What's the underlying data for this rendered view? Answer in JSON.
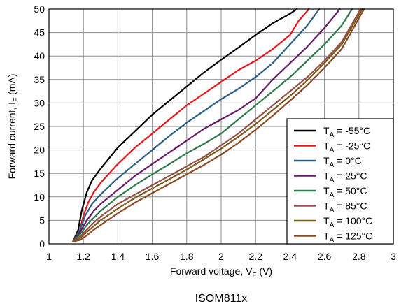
{
  "chart_data": {
    "type": "line",
    "xlabel": "Forward voltage, V",
    "xlabel_sub": "F",
    "xlabel_unit": " (V)",
    "ylabel": "Forward current, I",
    "ylabel_sub": "F",
    "ylabel_unit": " (mA)",
    "caption": "ISOM811x",
    "xlim": [
      1,
      3
    ],
    "ylim": [
      0,
      50
    ],
    "x_ticks": [
      "1",
      "1.2",
      "1.4",
      "1.6",
      "1.8",
      "2",
      "2.2",
      "2.4",
      "2.6",
      "2.8",
      "3"
    ],
    "y_ticks": [
      "0",
      "5",
      "10",
      "15",
      "20",
      "25",
      "30",
      "35",
      "40",
      "45",
      "50"
    ],
    "grid": true,
    "legend_position": "bottom-right",
    "legend_prefix": "T",
    "legend_prefix_sub": "A",
    "series": [
      {
        "name": " = -55°C",
        "color": "#000000",
        "x": [
          1.14,
          1.17,
          1.19,
          1.22,
          1.25,
          1.3,
          1.4,
          1.5,
          1.6,
          1.7,
          1.8,
          1.9,
          2.0,
          2.1,
          2.2,
          2.3,
          2.4,
          2.44
        ],
        "y": [
          0.5,
          3.0,
          7.0,
          11.0,
          13.5,
          16.0,
          20.5,
          24.0,
          27.5,
          30.5,
          33.5,
          36.5,
          39.2,
          41.8,
          44.5,
          47.0,
          49.0,
          50
        ]
      },
      {
        "name": " = -25°C",
        "color": "#e8151b",
        "x": [
          1.14,
          1.18,
          1.2,
          1.23,
          1.26,
          1.3,
          1.4,
          1.5,
          1.6,
          1.7,
          1.8,
          1.9,
          2.0,
          2.1,
          2.2,
          2.3,
          2.4,
          2.45,
          2.51
        ],
        "y": [
          0.5,
          3.0,
          6.0,
          9.0,
          11.0,
          13.0,
          17.0,
          20.5,
          23.5,
          26.5,
          29.5,
          32.0,
          34.5,
          37.0,
          39.0,
          41.5,
          44.5,
          47.5,
          50
        ]
      },
      {
        "name": " = 0°C",
        "color": "#2b5f83",
        "x": [
          1.14,
          1.18,
          1.21,
          1.25,
          1.3,
          1.4,
          1.5,
          1.6,
          1.7,
          1.8,
          1.9,
          2.0,
          2.1,
          2.2,
          2.3,
          2.4,
          2.5,
          2.57
        ],
        "y": [
          0.5,
          3.0,
          6.0,
          8.5,
          10.5,
          14.0,
          17.0,
          20.0,
          23.0,
          25.8,
          28.3,
          30.8,
          33.0,
          35.5,
          38.5,
          42.5,
          46.5,
          50
        ]
      },
      {
        "name": " = 25°C",
        "color": "#6a1a6a",
        "x": [
          1.14,
          1.18,
          1.22,
          1.26,
          1.3,
          1.4,
          1.5,
          1.6,
          1.7,
          1.8,
          1.9,
          2.0,
          2.1,
          2.2,
          2.3,
          2.4,
          2.5,
          2.6,
          2.69
        ],
        "y": [
          0.5,
          2.5,
          5.0,
          7.0,
          8.5,
          11.5,
          14.5,
          17.0,
          19.5,
          22.0,
          24.5,
          26.5,
          28.5,
          31.0,
          35.0,
          38.5,
          42.0,
          46.0,
          50
        ]
      },
      {
        "name": " = 50°C",
        "color": "#2e7a4e",
        "x": [
          1.14,
          1.18,
          1.22,
          1.26,
          1.3,
          1.4,
          1.5,
          1.6,
          1.7,
          1.8,
          1.9,
          2.0,
          2.1,
          2.2,
          2.3,
          2.4,
          2.5,
          2.6,
          2.7,
          2.76
        ],
        "y": [
          0.5,
          2.0,
          4.0,
          5.5,
          7.0,
          10.0,
          12.5,
          14.8,
          17.0,
          19.3,
          21.3,
          23.5,
          26.5,
          29.5,
          32.5,
          35.5,
          39.0,
          42.5,
          46.5,
          50
        ]
      },
      {
        "name": " = 85°C",
        "color": "#96514a",
        "x": [
          1.14,
          1.18,
          1.22,
          1.26,
          1.3,
          1.4,
          1.5,
          1.6,
          1.7,
          1.8,
          1.9,
          2.0,
          2.1,
          2.2,
          2.3,
          2.4,
          2.5,
          2.6,
          2.7,
          2.81
        ],
        "y": [
          0.5,
          1.5,
          3.0,
          4.5,
          5.8,
          8.5,
          10.5,
          12.5,
          14.5,
          16.5,
          18.5,
          21.0,
          23.5,
          26.5,
          29.5,
          32.5,
          35.5,
          39.0,
          43.0,
          50
        ]
      },
      {
        "name": " = 100°C",
        "color": "#7a5d1e",
        "x": [
          1.14,
          1.18,
          1.22,
          1.26,
          1.3,
          1.4,
          1.5,
          1.6,
          1.7,
          1.8,
          1.9,
          2.0,
          2.1,
          2.2,
          2.3,
          2.4,
          2.5,
          2.6,
          2.7,
          2.82
        ],
        "y": [
          0.5,
          1.2,
          2.5,
          3.8,
          5.0,
          7.5,
          9.8,
          11.8,
          13.8,
          15.8,
          18.0,
          20.3,
          22.8,
          25.5,
          28.5,
          31.5,
          34.8,
          38.5,
          42.5,
          50
        ]
      },
      {
        "name": " = 125°C",
        "color": "#8a4a25",
        "x": [
          1.14,
          1.18,
          1.22,
          1.26,
          1.3,
          1.4,
          1.5,
          1.6,
          1.7,
          1.8,
          1.9,
          2.0,
          2.1,
          2.2,
          2.3,
          2.4,
          2.5,
          2.6,
          2.7,
          2.83
        ],
        "y": [
          0.5,
          0.8,
          1.8,
          3.0,
          4.0,
          6.5,
          8.8,
          10.8,
          12.8,
          14.8,
          16.8,
          19.0,
          21.5,
          24.3,
          27.3,
          30.5,
          33.8,
          37.5,
          41.5,
          50
        ]
      }
    ]
  }
}
